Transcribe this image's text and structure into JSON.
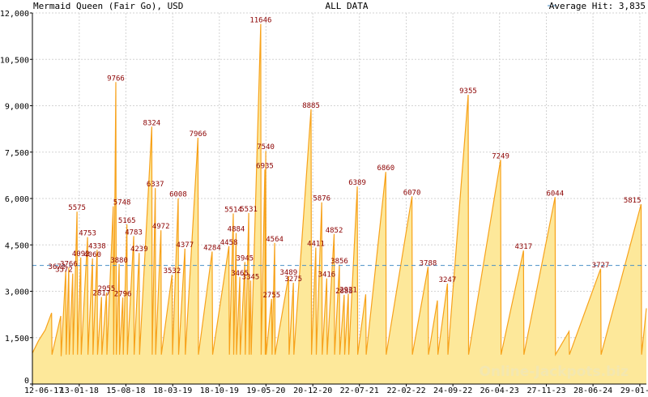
{
  "header": {
    "left_title": "Mermaid Queen (Fair Go), USD",
    "center_title": "ALL DATA",
    "legend_label": "Average Hit: 3,835"
  },
  "watermark": "Online-Jackpots.biz",
  "colors": {
    "area_fill": "#fde89a",
    "area_line": "#f7a21b",
    "peak_label": "#8b0000",
    "average_line": "#4a90c8",
    "grid": "#d3d3d3"
  },
  "chart_data": {
    "type": "area",
    "title": "Mermaid Queen (Fair Go), USD",
    "xlabel": "",
    "ylabel": "",
    "ylim": [
      0,
      12000
    ],
    "xlim": [
      "2017-06-12",
      "2025-02-28"
    ],
    "y_ticks": [
      {
        "value": 0,
        "label": "0"
      },
      {
        "value": 1500,
        "label": "1,500"
      },
      {
        "value": 3000,
        "label": "3,000"
      },
      {
        "value": 4500,
        "label": "4,500"
      },
      {
        "value": 6000,
        "label": "6,000"
      },
      {
        "value": 7500,
        "label": "7,500"
      },
      {
        "value": 9000,
        "label": "9,000"
      },
      {
        "value": 10500,
        "label": "10,500"
      },
      {
        "value": 12000,
        "label": "12,000"
      }
    ],
    "x_ticks": [
      {
        "value": "2017-06-12",
        "label": "12-06-17"
      },
      {
        "value": "2018-01-13",
        "label": "13-01-18"
      },
      {
        "value": "2018-08-15",
        "label": "15-08-18"
      },
      {
        "value": "2019-03-18",
        "label": "18-03-19"
      },
      {
        "value": "2019-10-18",
        "label": "18-10-19"
      },
      {
        "value": "2020-05-19",
        "label": "19-05-20"
      },
      {
        "value": "2020-12-20",
        "label": "20-12-20"
      },
      {
        "value": "2021-07-22",
        "label": "22-07-21"
      },
      {
        "value": "2022-02-22",
        "label": "22-02-22"
      },
      {
        "value": "2022-09-24",
        "label": "24-09-22"
      },
      {
        "value": "2023-04-26",
        "label": "26-04-23"
      },
      {
        "value": "2023-11-27",
        "label": "27-11-23"
      },
      {
        "value": "2024-06-28",
        "label": "28-06-24"
      },
      {
        "value": "2025-01-29",
        "label": "29-01-25"
      }
    ],
    "average": 3835,
    "grid": true,
    "legend": "top-right",
    "series": [
      {
        "points": [
          [
            "2017-06-12",
            1000
          ],
          [
            "2017-07-10",
            1400
          ],
          [
            "2017-08-10",
            1750
          ],
          [
            "2017-09-08",
            2300
          ],
          [
            "2017-09-10",
            950
          ],
          [
            "2017-10-20",
            2200
          ],
          [
            "2017-10-22",
            900
          ],
          [
            "2017-11-12",
            3672
          ],
          [
            "2017-11-14",
            950
          ],
          [
            "2017-11-26",
            3766
          ],
          [
            "2017-11-28",
            950
          ],
          [
            "2017-12-14",
            3572
          ],
          [
            "2017-12-16",
            950
          ],
          [
            "2018-01-03",
            5575
          ],
          [
            "2018-01-05",
            950
          ],
          [
            "2018-01-20",
            4092
          ],
          [
            "2018-01-22",
            950
          ],
          [
            "2018-02-20",
            4753
          ],
          [
            "2018-02-22",
            950
          ],
          [
            "2018-03-15",
            4060
          ],
          [
            "2018-03-17",
            950
          ],
          [
            "2018-04-05",
            4338
          ],
          [
            "2018-04-07",
            950
          ],
          [
            "2018-04-25",
            2817
          ],
          [
            "2018-04-27",
            950
          ],
          [
            "2018-05-18",
            2955
          ],
          [
            "2018-05-20",
            950
          ],
          [
            "2018-06-18",
            5748
          ],
          [
            "2018-06-20",
            950
          ],
          [
            "2018-06-30",
            9766
          ],
          [
            "2018-07-02",
            950
          ],
          [
            "2018-07-15",
            3880
          ],
          [
            "2018-07-17",
            950
          ],
          [
            "2018-08-01",
            2796
          ],
          [
            "2018-08-03",
            950
          ],
          [
            "2018-08-20",
            5165
          ],
          [
            "2018-08-22",
            950
          ],
          [
            "2018-09-20",
            4783
          ],
          [
            "2018-09-22",
            950
          ],
          [
            "2018-10-15",
            4239
          ],
          [
            "2018-10-17",
            950
          ],
          [
            "2018-12-12",
            8324
          ],
          [
            "2018-12-14",
            950
          ],
          [
            "2018-12-28",
            6337
          ],
          [
            "2018-12-30",
            950
          ],
          [
            "2019-01-23",
            4972
          ],
          [
            "2019-01-25",
            950
          ],
          [
            "2019-03-15",
            3532
          ],
          [
            "2019-03-17",
            950
          ],
          [
            "2019-04-12",
            6008
          ],
          [
            "2019-04-14",
            950
          ],
          [
            "2019-05-13",
            4377
          ],
          [
            "2019-05-15",
            950
          ],
          [
            "2019-07-12",
            7966
          ],
          [
            "2019-07-14",
            950
          ],
          [
            "2019-09-15",
            4284
          ],
          [
            "2019-09-17",
            950
          ],
          [
            "2019-12-01",
            4458
          ],
          [
            "2019-12-03",
            950
          ],
          [
            "2019-12-21",
            5514
          ],
          [
            "2019-12-23",
            950
          ],
          [
            "2020-01-03",
            4884
          ],
          [
            "2020-01-05",
            950
          ],
          [
            "2020-01-20",
            3465
          ],
          [
            "2020-01-22",
            950
          ],
          [
            "2020-02-12",
            3945
          ],
          [
            "2020-02-14",
            950
          ],
          [
            "2020-03-01",
            5531
          ],
          [
            "2020-03-03",
            950
          ],
          [
            "2020-03-10",
            3345
          ],
          [
            "2020-03-12",
            950
          ],
          [
            "2020-04-25",
            11646
          ],
          [
            "2020-04-27",
            950
          ],
          [
            "2020-05-14",
            6935
          ],
          [
            "2020-05-16",
            950
          ],
          [
            "2020-05-18",
            7540
          ],
          [
            "2020-05-20",
            950
          ],
          [
            "2020-06-14",
            2755
          ],
          [
            "2020-06-16",
            950
          ],
          [
            "2020-06-28",
            4564
          ],
          [
            "2020-06-30",
            950
          ],
          [
            "2020-08-31",
            3489
          ],
          [
            "2020-09-02",
            950
          ],
          [
            "2020-09-22",
            3275
          ],
          [
            "2020-09-24",
            950
          ],
          [
            "2020-12-12",
            8885
          ],
          [
            "2020-12-14",
            950
          ],
          [
            "2021-01-03",
            4411
          ],
          [
            "2021-01-05",
            950
          ],
          [
            "2021-01-30",
            5876
          ],
          [
            "2021-02-01",
            950
          ],
          [
            "2021-02-22",
            3416
          ],
          [
            "2021-02-24",
            950
          ],
          [
            "2021-03-28",
            4852
          ],
          [
            "2021-03-30",
            950
          ],
          [
            "2021-04-21",
            3856
          ],
          [
            "2021-04-23",
            950
          ],
          [
            "2021-05-13",
            2885
          ],
          [
            "2021-05-15",
            950
          ],
          [
            "2021-06-01",
            2921
          ],
          [
            "2021-06-03",
            950
          ],
          [
            "2021-07-12",
            6389
          ],
          [
            "2021-07-14",
            950
          ],
          [
            "2021-08-20",
            2900
          ],
          [
            "2021-08-22",
            950
          ],
          [
            "2021-11-20",
            6860
          ],
          [
            "2021-11-22",
            950
          ],
          [
            "2022-03-20",
            6070
          ],
          [
            "2022-03-22",
            950
          ],
          [
            "2022-06-02",
            3788
          ],
          [
            "2022-06-04",
            950
          ],
          [
            "2022-07-15",
            2700
          ],
          [
            "2022-07-17",
            950
          ],
          [
            "2022-08-30",
            3247
          ],
          [
            "2022-09-01",
            950
          ],
          [
            "2022-12-03",
            9355
          ],
          [
            "2022-12-05",
            950
          ],
          [
            "2023-05-01",
            7249
          ],
          [
            "2023-05-03",
            950
          ],
          [
            "2023-08-14",
            4317
          ],
          [
            "2023-08-16",
            950
          ],
          [
            "2024-01-06",
            6044
          ],
          [
            "2024-01-08",
            950
          ],
          [
            "2024-03-10",
            1700
          ],
          [
            "2024-03-12",
            950
          ],
          [
            "2024-08-02",
            3727
          ],
          [
            "2024-08-04",
            950
          ],
          [
            "2025-02-04",
            5815
          ],
          [
            "2025-02-06",
            950
          ],
          [
            "2025-02-28",
            2450
          ]
        ]
      }
    ],
    "annotations": [
      {
        "date": "2017-11-12",
        "value": 3672,
        "label": "3672",
        "anchor": "end"
      },
      {
        "date": "2017-11-26",
        "value": 3766,
        "label": "3766",
        "anchor": "middle"
      },
      {
        "date": "2017-12-14",
        "value": 3572,
        "label": "3572",
        "anchor": "end"
      },
      {
        "date": "2018-01-03",
        "value": 5575,
        "label": "5575",
        "anchor": "middle"
      },
      {
        "date": "2018-01-20",
        "value": 4092,
        "label": "4092",
        "anchor": "middle"
      },
      {
        "date": "2018-02-20",
        "value": 4753,
        "label": "4753",
        "anchor": "middle"
      },
      {
        "date": "2018-03-15",
        "value": 4060,
        "label": "4060",
        "anchor": "middle"
      },
      {
        "date": "2018-04-05",
        "value": 4338,
        "label": "4338",
        "anchor": "middle"
      },
      {
        "date": "2018-04-25",
        "value": 2817,
        "label": "2817",
        "anchor": "middle"
      },
      {
        "date": "2018-05-18",
        "value": 2955,
        "label": "2955",
        "anchor": "middle"
      },
      {
        "date": "2018-06-18",
        "value": 5748,
        "label": "5748",
        "anchor": "start"
      },
      {
        "date": "2018-06-30",
        "value": 9766,
        "label": "9766",
        "anchor": "middle"
      },
      {
        "date": "2018-07-15",
        "value": 3880,
        "label": "3880",
        "anchor": "middle"
      },
      {
        "date": "2018-08-01",
        "value": 2796,
        "label": "2796",
        "anchor": "middle"
      },
      {
        "date": "2018-08-20",
        "value": 5165,
        "label": "5165",
        "anchor": "middle"
      },
      {
        "date": "2018-09-20",
        "value": 4783,
        "label": "4783",
        "anchor": "middle"
      },
      {
        "date": "2018-10-15",
        "value": 4239,
        "label": "4239",
        "anchor": "middle"
      },
      {
        "date": "2018-12-12",
        "value": 8324,
        "label": "8324",
        "anchor": "middle"
      },
      {
        "date": "2018-12-28",
        "value": 6337,
        "label": "6337",
        "anchor": "middle"
      },
      {
        "date": "2019-01-23",
        "value": 4972,
        "label": "4972",
        "anchor": "middle"
      },
      {
        "date": "2019-03-15",
        "value": 3532,
        "label": "3532",
        "anchor": "middle"
      },
      {
        "date": "2019-04-12",
        "value": 6008,
        "label": "6008",
        "anchor": "middle"
      },
      {
        "date": "2019-05-13",
        "value": 4377,
        "label": "4377",
        "anchor": "middle"
      },
      {
        "date": "2019-07-12",
        "value": 7966,
        "label": "7966",
        "anchor": "middle"
      },
      {
        "date": "2019-09-15",
        "value": 4284,
        "label": "4284",
        "anchor": "middle"
      },
      {
        "date": "2019-12-01",
        "value": 4458,
        "label": "4458",
        "anchor": "middle"
      },
      {
        "date": "2019-12-21",
        "value": 5514,
        "label": "5514",
        "anchor": "middle"
      },
      {
        "date": "2020-01-03",
        "value": 4884,
        "label": "4884",
        "anchor": "middle"
      },
      {
        "date": "2020-01-20",
        "value": 3465,
        "label": "3465",
        "anchor": "middle"
      },
      {
        "date": "2020-02-12",
        "value": 3945,
        "label": "3945",
        "anchor": "middle"
      },
      {
        "date": "2020-03-01",
        "value": 5531,
        "label": "5531",
        "anchor": "middle"
      },
      {
        "date": "2020-03-10",
        "value": 3345,
        "label": "3345",
        "anchor": "middle"
      },
      {
        "date": "2020-04-25",
        "value": 11646,
        "label": "11646",
        "anchor": "middle"
      },
      {
        "date": "2020-05-14",
        "value": 6935,
        "label": "6935",
        "anchor": "middle"
      },
      {
        "date": "2020-05-18",
        "value": 7540,
        "label": "7540",
        "anchor": "middle"
      },
      {
        "date": "2020-06-14",
        "value": 2755,
        "label": "2755",
        "anchor": "middle"
      },
      {
        "date": "2020-06-28",
        "value": 4564,
        "label": "4564",
        "anchor": "middle"
      },
      {
        "date": "2020-08-31",
        "value": 3489,
        "label": "3489",
        "anchor": "middle"
      },
      {
        "date": "2020-09-22",
        "value": 3275,
        "label": "3275",
        "anchor": "middle"
      },
      {
        "date": "2020-12-12",
        "value": 8885,
        "label": "8885",
        "anchor": "middle"
      },
      {
        "date": "2021-01-03",
        "value": 4411,
        "label": "4411",
        "anchor": "middle"
      },
      {
        "date": "2021-01-30",
        "value": 5876,
        "label": "5876",
        "anchor": "middle"
      },
      {
        "date": "2021-02-22",
        "value": 3416,
        "label": "3416",
        "anchor": "middle"
      },
      {
        "date": "2021-03-28",
        "value": 4852,
        "label": "4852",
        "anchor": "middle"
      },
      {
        "date": "2021-04-21",
        "value": 3856,
        "label": "3856",
        "anchor": "middle"
      },
      {
        "date": "2021-05-13",
        "value": 2885,
        "label": "2885",
        "anchor": "middle"
      },
      {
        "date": "2021-06-01",
        "value": 2921,
        "label": "2921",
        "anchor": "middle"
      },
      {
        "date": "2021-07-12",
        "value": 6389,
        "label": "6389",
        "anchor": "middle"
      },
      {
        "date": "2021-11-20",
        "value": 6860,
        "label": "6860",
        "anchor": "middle"
      },
      {
        "date": "2022-03-20",
        "value": 6070,
        "label": "6070",
        "anchor": "middle"
      },
      {
        "date": "2022-06-02",
        "value": 3788,
        "label": "3788",
        "anchor": "middle"
      },
      {
        "date": "2022-08-30",
        "value": 3247,
        "label": "3247",
        "anchor": "middle"
      },
      {
        "date": "2022-12-03",
        "value": 9355,
        "label": "9355",
        "anchor": "middle"
      },
      {
        "date": "2023-05-01",
        "value": 7249,
        "label": "7249",
        "anchor": "middle"
      },
      {
        "date": "2023-08-14",
        "value": 4317,
        "label": "4317",
        "anchor": "middle"
      },
      {
        "date": "2024-01-06",
        "value": 6044,
        "label": "6044",
        "anchor": "middle"
      },
      {
        "date": "2024-08-02",
        "value": 3727,
        "label": "3727",
        "anchor": "middle"
      },
      {
        "date": "2025-02-04",
        "value": 5815,
        "label": "5815",
        "anchor": "end"
      }
    ]
  }
}
